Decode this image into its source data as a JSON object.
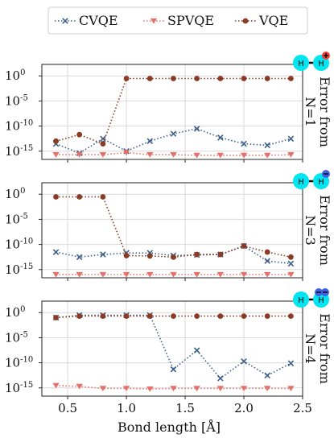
{
  "chart_data": [
    {
      "type": "line",
      "panel": "N=1",
      "side_label": [
        "Error from",
        "N=1"
      ],
      "charge": "+",
      "yscale": "log",
      "x": [
        0.4,
        0.6,
        0.8,
        1.0,
        1.2,
        1.4,
        1.6,
        1.8,
        2.0,
        2.2,
        2.4
      ],
      "series": [
        {
          "name": "CVQE",
          "values": [
            3e-14,
            4e-16,
            3e-13,
            1e-15,
            1e-13,
            3e-12,
            3e-11,
            5e-13,
            3e-14,
            1.5e-14,
            3e-13
          ]
        },
        {
          "name": "SPVQE",
          "values": [
            2e-16,
            2e-16,
            2e-16,
            5e-16,
            2e-16,
            2e-16,
            1.5e-16,
            1.5e-16,
            1.5e-16,
            1.5e-16,
            2e-16
          ]
        },
        {
          "name": "VQE",
          "values": [
            1e-13,
            2e-12,
            3e-14,
            0.3,
            0.3,
            0.3,
            0.3,
            0.3,
            0.3,
            0.3,
            0.3
          ]
        }
      ]
    },
    {
      "type": "line",
      "panel": "N=3",
      "side_label": [
        "Error from",
        "N=3"
      ],
      "charge": "-",
      "yscale": "log",
      "x": [
        0.4,
        0.6,
        0.8,
        1.0,
        1.2,
        1.4,
        1.6,
        1.8,
        2.0,
        2.2,
        2.4
      ],
      "series": [
        {
          "name": "CVQE",
          "values": [
            3e-12,
            3e-13,
            1e-12,
            2e-12,
            2e-12,
            6e-13,
            8e-13,
            1e-12,
            5e-11,
            5e-14,
            1.5e-14
          ]
        },
        {
          "name": "SPVQE",
          "values": [
            1e-16,
            1e-16,
            1e-16,
            1e-16,
            1e-16,
            1e-16,
            1e-16,
            1e-16,
            1e-16,
            1e-16,
            1e-16
          ]
        },
        {
          "name": "VQE",
          "values": [
            0.3,
            0.3,
            0.3,
            6e-13,
            5e-13,
            3e-13,
            1e-12,
            1e-12,
            5e-11,
            3e-12,
            3e-13
          ]
        }
      ]
    },
    {
      "type": "line",
      "panel": "N=4",
      "side_label": [
        "Error from",
        "N=4"
      ],
      "charge": "--",
      "yscale": "log",
      "x": [
        0.4,
        0.6,
        0.8,
        1.0,
        1.2,
        1.4,
        1.6,
        1.8,
        2.0,
        2.2,
        2.4
      ],
      "series": [
        {
          "name": "CVQE",
          "values": [
            0.1,
            0.3,
            0.3,
            0.3,
            0.3,
            5e-12,
            3e-08,
            8e-14,
            2e-10,
            3e-13,
            8e-11
          ]
        },
        {
          "name": "SPVQE",
          "values": [
            3e-15,
            2e-15,
            8e-16,
            8e-16,
            6e-16,
            8e-16,
            8e-16,
            8e-16,
            8e-16,
            8e-16,
            8e-16
          ]
        },
        {
          "name": "VQE",
          "values": [
            0.1,
            0.2,
            0.2,
            0.2,
            0.2,
            0.2,
            0.2,
            0.2,
            0.2,
            0.2,
            0.2
          ]
        }
      ]
    }
  ],
  "axes": {
    "xlabel": "Bond length [Å]",
    "xlim": [
      0.28,
      2.5
    ],
    "xticks": [
      "0.5",
      "1.0",
      "1.5",
      "2.0",
      "2.5"
    ],
    "xtick_values": [
      0.5,
      1.0,
      1.5,
      2.0,
      2.5
    ],
    "ylim_exp": [
      -16,
      1
    ],
    "ytick_exps": [
      0,
      -5,
      -10,
      -15
    ],
    "ytick_base": "10",
    "ytick_exp_labels": [
      "0",
      "-5",
      "-10",
      "-15"
    ],
    "grid": true
  },
  "legend": {
    "placement": "top-center",
    "entries": [
      "CVQE",
      "SPVQE",
      "VQE"
    ]
  },
  "colors": {
    "CVQE": "#3b5f8a",
    "SPVQE": "#e8706a",
    "VQE": "#8b3a23",
    "atom": "#00e5f0",
    "charge_plus": "#f04040",
    "charge_minus": "#4060e0"
  },
  "markers": {
    "CVQE": "x",
    "SPVQE": "triangle-down",
    "VQE": "circle"
  },
  "molecule": {
    "atom_label": "H"
  }
}
